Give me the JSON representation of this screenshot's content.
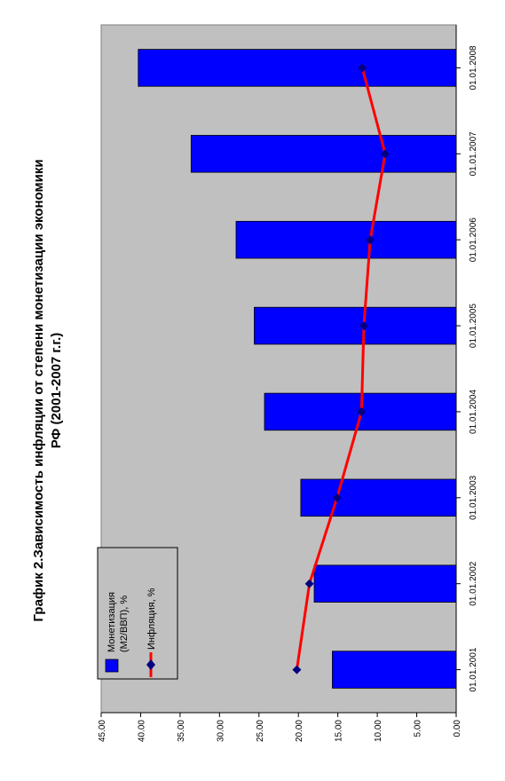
{
  "chart_data": {
    "type": "bar",
    "title_line1": "График 2.Зависимость инфляции от степени монетизации экономики",
    "title_line2": "РФ (2001-2007 г.г.)",
    "categories": [
      "01.01.2001",
      "01.01.2002",
      "01.01.2003",
      "01.01.2004",
      "01.01.2005",
      "01.01.2006",
      "01.01.2007",
      "01.01.2008"
    ],
    "series": [
      {
        "name_line1": "Монетизация",
        "name_line2": "(M2/ВВП), %",
        "kind": "bar",
        "color": "#0000ff",
        "values": [
          15.7,
          18.0,
          19.7,
          24.3,
          25.6,
          27.9,
          33.6,
          40.3
        ]
      },
      {
        "name": "Инфляция, %",
        "kind": "line",
        "color": "#ff0000",
        "marker_color": "#000080",
        "values": [
          20.2,
          18.6,
          15.1,
          12.0,
          11.7,
          10.9,
          9.0,
          11.9
        ]
      }
    ],
    "y_ticks": [
      "0.00",
      "5.00",
      "10.00",
      "15.00",
      "20.00",
      "25.00",
      "30.00",
      "35.00",
      "40.00",
      "45.00"
    ],
    "ylim": [
      0,
      45
    ],
    "grid": false,
    "plot_background": "#c0c0c0",
    "legend_placement": "top-left",
    "orientation": "rotated-90-clockwise"
  }
}
